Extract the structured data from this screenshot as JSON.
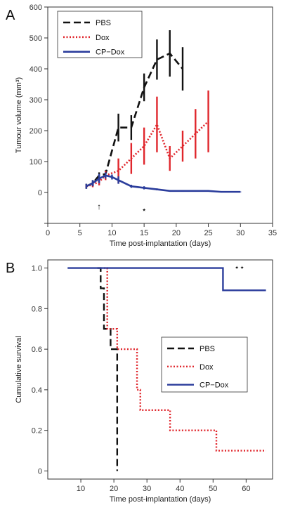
{
  "chart_data": [
    {
      "panel": "A",
      "type": "line",
      "xlabel": "Time post-implantation (days)",
      "ylabel": "Tumour volume (mm³)",
      "xlim": [
        0,
        35
      ],
      "ylim": [
        -100,
        600
      ],
      "xticks": [
        0,
        5,
        10,
        15,
        20,
        25,
        30,
        35
      ],
      "yticks": [
        -100,
        0,
        100,
        200,
        300,
        400,
        500,
        600
      ],
      "ytick_labels": [
        "",
        "0",
        "100",
        "200",
        "300",
        "400",
        "500",
        "600"
      ],
      "legend": {
        "position": "top-left",
        "entries": [
          "PBS",
          "Dox",
          "CP−Dox"
        ]
      },
      "series": [
        {
          "name": "PBS",
          "color": "#111111",
          "dash": "dashed",
          "x": [
            6,
            7,
            8,
            9,
            11,
            13,
            15,
            17,
            19,
            21
          ],
          "y": [
            20,
            30,
            55,
            60,
            210,
            210,
            340,
            430,
            450,
            400
          ],
          "err": [
            8,
            10,
            10,
            12,
            45,
            40,
            45,
            65,
            75,
            70
          ]
        },
        {
          "name": "Dox",
          "color": "#e0262c",
          "dash": "dotted",
          "x": [
            6,
            7,
            8,
            9,
            11,
            13,
            15,
            17,
            19,
            21,
            23,
            25
          ],
          "y": [
            20,
            25,
            35,
            55,
            70,
            110,
            150,
            220,
            110,
            150,
            190,
            230
          ],
          "err": [
            6,
            8,
            12,
            15,
            40,
            50,
            60,
            90,
            40,
            50,
            80,
            100
          ]
        },
        {
          "name": "CP−Dox",
          "color": "#2b3d9c",
          "dash": "solid",
          "x": [
            6,
            7,
            8,
            9,
            10,
            11,
            13,
            15,
            17,
            19,
            21,
            23,
            25,
            27,
            30
          ],
          "y": [
            20,
            30,
            45,
            55,
            50,
            40,
            20,
            15,
            10,
            5,
            5,
            5,
            5,
            2,
            2
          ],
          "err": [
            8,
            10,
            15,
            10,
            8,
            12,
            5,
            5,
            3,
            2,
            2,
            2,
            2,
            1,
            1
          ]
        }
      ],
      "annotations": [
        {
          "text": "↑",
          "x": 8,
          "y": -55
        },
        {
          "text": "⋆",
          "x": 15,
          "y": -65
        }
      ]
    },
    {
      "panel": "B",
      "type": "line",
      "step": true,
      "xlabel": "Time post-implantation (days)",
      "ylabel": "Cumulative survival",
      "xlim": [
        0,
        68
      ],
      "ylim": [
        -0.04,
        1.04
      ],
      "xticks": [
        10,
        20,
        30,
        40,
        50,
        60
      ],
      "yticks": [
        0,
        0.2,
        0.4,
        0.6,
        0.8,
        1.0
      ],
      "ytick_labels": [
        "0",
        "0.2",
        "0.4",
        "0.6",
        "0.8",
        "1.0"
      ],
      "legend": {
        "position": "center-right",
        "entries": [
          "PBS",
          "Dox",
          "CP−Dox"
        ]
      },
      "series": [
        {
          "name": "PBS",
          "color": "#111111",
          "dash": "dashed",
          "x": [
            15,
            16,
            17,
            19,
            21,
            21
          ],
          "y": [
            1.0,
            0.9,
            0.7,
            0.6,
            0.6,
            0.0
          ]
        },
        {
          "name": "Dox",
          "color": "#e0262c",
          "dash": "dotted",
          "x": [
            17,
            18,
            21,
            27,
            28,
            37,
            51,
            66
          ],
          "y": [
            1.0,
            0.7,
            0.6,
            0.4,
            0.3,
            0.2,
            0.1,
            0.1
          ]
        },
        {
          "name": "CP−Dox",
          "color": "#2b3d9c",
          "dash": "solid",
          "x": [
            6,
            53,
            66
          ],
          "y": [
            1.0,
            0.89,
            0.89
          ]
        }
      ],
      "annotations": [
        {
          "text": "⋆⋆",
          "x": 58,
          "y": 0.99
        }
      ]
    }
  ]
}
